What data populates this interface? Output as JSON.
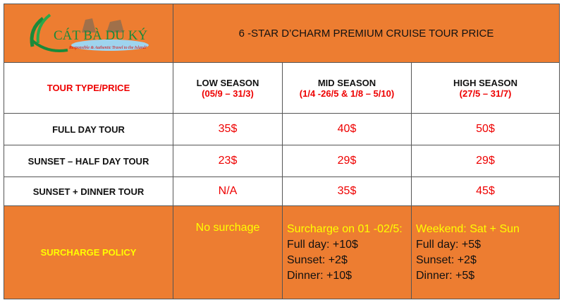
{
  "logo": {
    "name": "CÁT BÀ DU KÝ",
    "tagline": "Responsible & Authentic Travel to the Island!"
  },
  "title": "6 -STAR D’CHARM PREMIUM CRUISE TOUR PRICE",
  "header": {
    "label": "TOUR TYPE/PRICE",
    "seasons": [
      {
        "name": "LOW SEASON",
        "dates": "(05/9 – 31/3)"
      },
      {
        "name": "MID SEASON",
        "dates": "(1/4 -26/5 & 1/8 – 5/10)"
      },
      {
        "name": "HIGH SEASON",
        "dates": "(27/5 – 31/7)"
      }
    ]
  },
  "rows": [
    {
      "tour": "FULL DAY  TOUR",
      "prices": [
        "35$",
        "40$",
        "50$"
      ]
    },
    {
      "tour": "SUNSET – HALF DAY TOUR",
      "prices": [
        "23$",
        "29$",
        "29$"
      ]
    },
    {
      "tour": "SUNSET + DINNER TOUR",
      "prices": [
        "N/A",
        "35$",
        "45$"
      ]
    }
  ],
  "surcharge": {
    "label": "SURCHARGE POLICY",
    "low": "No surchage",
    "mid": {
      "title": "Surcharge on 01 -02/5:",
      "lines": [
        "Full day: +10$",
        "Sunset: +2$",
        "Dinner: +10$"
      ]
    },
    "high": {
      "title": "Weekend: Sat + Sun",
      "lines": [
        "Full day: +5$",
        "Sunset: +2$",
        "Dinner: +5$"
      ]
    }
  },
  "colors": {
    "orange": "#ED7D31",
    "red": "#EE0000",
    "yellow": "#FFFF00"
  }
}
